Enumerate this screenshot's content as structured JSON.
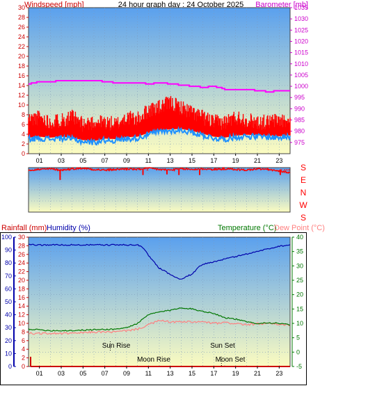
{
  "header": {
    "left_label": "Windspeed [mph]",
    "title": "24 hour graph day : 24 October 2025",
    "right_label": "Barometer [mb]"
  },
  "colors": {
    "wind_axis": "#cc0000",
    "baro_axis": "#cc00cc",
    "gust": "#ff0000",
    "avg_wind": "#1e90ff",
    "baro": "#ff00ff",
    "direction": "#ff0000",
    "humidity": "#0000aa",
    "temperature": "#007700",
    "dewpoint": "#ff8080",
    "rain": "#cc0000",
    "sky_top": "#5aa0ee",
    "sky_bottom": "#fcfcc0"
  },
  "hour_ticks": [
    "01",
    "03",
    "05",
    "07",
    "09",
    "11",
    "13",
    "15",
    "17",
    "19",
    "21",
    "23"
  ],
  "direction_labels": [
    "S",
    "E",
    "N",
    "W",
    "S"
  ],
  "bottom_labels": {
    "rainfall": "Rainfall (mm)",
    "humidity": "Humidity (%)",
    "temperature": "Temperature (°C)",
    "dewpoint": "Dew Point (°C)"
  },
  "astro": {
    "sun_rise": "Sun Rise",
    "sun_set": "Sun Set",
    "moon_rise": "Moon Rise",
    "moon_set": "Moon Set"
  },
  "chart_data": [
    {
      "type": "line",
      "title": "24 hour graph day : 24 October 2025",
      "ylabel": "Windspeed [mph]",
      "y2label": "Barometer [mb]",
      "x_unit": "hour",
      "ylim": [
        0,
        30
      ],
      "y2lim": [
        970,
        1035
      ],
      "yticks": [
        0,
        2,
        4,
        6,
        8,
        10,
        12,
        14,
        16,
        18,
        20,
        22,
        24,
        26,
        28,
        30
      ],
      "y2ticks": [
        975,
        980,
        985,
        990,
        995,
        1000,
        1005,
        1010,
        1015,
        1020,
        1025,
        1030,
        1035
      ],
      "series": [
        {
          "name": "Gust",
          "axis": "left",
          "x": [
            0,
            1,
            2,
            3,
            4,
            5,
            6,
            7,
            8,
            9,
            10,
            11,
            12,
            13,
            14,
            15,
            16,
            17,
            18,
            19,
            20,
            21,
            22,
            23,
            24
          ],
          "values": [
            6.5,
            7,
            6,
            6.5,
            7,
            5.5,
            6,
            6,
            5.5,
            7,
            6.5,
            8.5,
            9,
            10,
            9,
            8,
            7,
            6,
            6,
            7,
            6.5,
            6,
            6,
            6.5,
            6
          ]
        },
        {
          "name": "Average",
          "axis": "left",
          "x": [
            0,
            1,
            2,
            3,
            4,
            5,
            6,
            7,
            8,
            9,
            10,
            11,
            12,
            13,
            14,
            15,
            16,
            17,
            18,
            19,
            20,
            21,
            22,
            23,
            24
          ],
          "values": [
            3,
            3.2,
            3,
            3.2,
            3,
            2.5,
            2.3,
            2.8,
            2.7,
            3.1,
            3.2,
            4,
            4.5,
            4.7,
            4.8,
            4.4,
            3.8,
            3.2,
            3,
            3.4,
            3.6,
            3.5,
            3.4,
            3.3,
            3.5
          ]
        },
        {
          "name": "Barometer",
          "axis": "right",
          "x": [
            0,
            1,
            2,
            3,
            4,
            5,
            6,
            7,
            8,
            9,
            10,
            11,
            12,
            13,
            14,
            15,
            16,
            17,
            18,
            19,
            20,
            21,
            22,
            23,
            24
          ],
          "values": [
            1001,
            1002,
            1002,
            1002.5,
            1002.5,
            1002.5,
            1002.5,
            1002,
            1001.5,
            1001.5,
            1001.5,
            1001,
            1001.5,
            1001,
            1000.5,
            1000,
            999.5,
            1000,
            998.5,
            998.5,
            998.5,
            998,
            997.5,
            998,
            998
          ]
        }
      ]
    },
    {
      "type": "line",
      "ylabel": "Wind direction",
      "x_unit": "hour",
      "yticks": [
        "S",
        "E",
        "N",
        "W",
        "S"
      ],
      "series": [
        {
          "name": "Direction",
          "x": [
            0,
            1,
            2,
            3,
            4,
            5,
            6,
            7,
            8,
            9,
            10,
            11,
            12,
            13,
            14,
            15,
            16,
            17,
            18,
            19,
            20,
            21,
            22,
            23,
            24
          ],
          "values": [
            340,
            345,
            350,
            340,
            350,
            355,
            345,
            340,
            345,
            350,
            345,
            355,
            345,
            340,
            350,
            345,
            350,
            345,
            350,
            345,
            340,
            350,
            345,
            330,
            320
          ]
        }
      ]
    },
    {
      "type": "line",
      "x_unit": "hour",
      "ylabel": "Humidity (%)",
      "ylim": [
        0,
        100
      ],
      "yticks": [
        0,
        10,
        20,
        30,
        40,
        50,
        60,
        70,
        80,
        90,
        100
      ],
      "y1label": "Rainfall (mm)",
      "y1lim": [
        0,
        30
      ],
      "y1ticks": [
        0,
        2,
        4,
        6,
        8,
        10,
        12,
        14,
        16,
        18,
        20,
        22,
        24,
        26,
        28,
        30
      ],
      "y2label": "Temperature (°C)",
      "y2lim": [
        -5,
        40
      ],
      "y2ticks": [
        -5,
        0,
        5,
        10,
        15,
        20,
        25,
        30,
        35,
        40
      ],
      "series": [
        {
          "name": "Humidity",
          "axis": "left",
          "x": [
            0,
            2,
            4,
            6,
            8,
            10,
            10.5,
            11,
            11.5,
            12,
            12.5,
            13,
            13.5,
            14,
            14.5,
            15,
            15.5,
            16,
            17,
            18,
            19,
            20,
            21,
            22,
            23,
            24
          ],
          "values": [
            94,
            94,
            94,
            94,
            94,
            94,
            92,
            86,
            81,
            76,
            74,
            71,
            69,
            67,
            70,
            71,
            76,
            79,
            81,
            83,
            85,
            87,
            89,
            91,
            93,
            94
          ]
        },
        {
          "name": "Temperature",
          "axis": "right",
          "x": [
            0,
            2,
            4,
            6,
            8,
            9,
            10,
            11,
            12,
            13,
            14,
            15,
            16,
            17,
            18,
            19,
            20,
            21,
            22,
            23,
            24
          ],
          "values": [
            8,
            7.5,
            7.5,
            7.8,
            8,
            8.5,
            10,
            13,
            14,
            14.5,
            15.5,
            15,
            14.2,
            13.5,
            12,
            11.5,
            10.5,
            10,
            10.2,
            10,
            9.5
          ]
        },
        {
          "name": "Dew Point",
          "axis": "right",
          "x": [
            0,
            2,
            4,
            6,
            8,
            9,
            10,
            11,
            12,
            13,
            14,
            15,
            16,
            17,
            18,
            19,
            20,
            21,
            22,
            23,
            24
          ],
          "values": [
            6.5,
            6.5,
            6.5,
            7,
            7,
            7.5,
            8,
            9.5,
            11,
            10.5,
            10.5,
            10.5,
            10.5,
            10,
            10.2,
            10,
            9.5,
            9.8,
            10,
            9.5,
            9.5
          ]
        },
        {
          "name": "Rainfall",
          "axis": "rain",
          "x": [
            0,
            24
          ],
          "values": [
            0,
            0
          ]
        }
      ],
      "astro": {
        "sun_rise": 7.5,
        "sun_set": 17.5,
        "moon_rise": 7.5,
        "moon_set": 17.7
      }
    }
  ]
}
